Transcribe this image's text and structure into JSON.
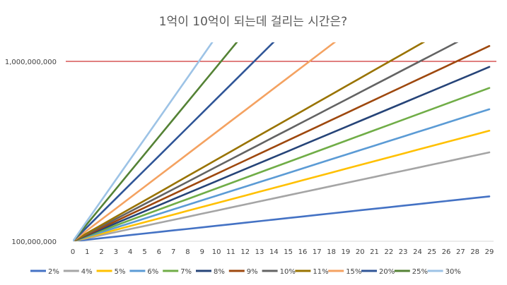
{
  "chart_data": {
    "type": "line",
    "title": "1억이 10억이 되는데 걸리는 시간은?",
    "x": [
      0,
      1,
      2,
      3,
      4,
      5,
      6,
      7,
      8,
      9,
      10,
      11,
      12,
      13,
      14,
      15,
      16,
      17,
      18,
      19,
      20,
      21,
      22,
      23,
      24,
      25,
      26,
      27,
      28,
      29
    ],
    "y_scale": "log",
    "ylim": [
      100000000,
      1300000000
    ],
    "y_ticks": [
      "100,000,000",
      "1,000,000,000"
    ],
    "threshold": {
      "value": 1000000000,
      "color": "#c00000"
    },
    "initial_value": 100000000,
    "legend_position": "bottom",
    "grid": false,
    "series": [
      {
        "name": "2%",
        "rate": 0.02,
        "color": "#4472c4"
      },
      {
        "name": "4%",
        "rate": 0.04,
        "color": "#a5a5a5"
      },
      {
        "name": "5%",
        "rate": 0.05,
        "color": "#ffc000"
      },
      {
        "name": "6%",
        "rate": 0.06,
        "color": "#5b9bd5"
      },
      {
        "name": "7%",
        "rate": 0.07,
        "color": "#70ad47"
      },
      {
        "name": "8%",
        "rate": 0.08,
        "color": "#264478"
      },
      {
        "name": "9%",
        "rate": 0.09,
        "color": "#9e480e"
      },
      {
        "name": "10%",
        "rate": 0.1,
        "color": "#636363"
      },
      {
        "name": "11%",
        "rate": 0.11,
        "color": "#997300"
      },
      {
        "name": "15%",
        "rate": 0.15,
        "color": "#f4a261"
      },
      {
        "name": "20%",
        "rate": 0.2,
        "color": "#2f5597"
      },
      {
        "name": "25%",
        "rate": 0.25,
        "color": "#548235"
      },
      {
        "name": "30%",
        "rate": 0.3,
        "color": "#9dc3e6"
      }
    ]
  }
}
